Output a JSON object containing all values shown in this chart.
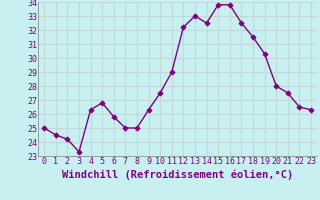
{
  "x": [
    0,
    1,
    2,
    3,
    4,
    5,
    6,
    7,
    8,
    9,
    10,
    11,
    12,
    13,
    14,
    15,
    16,
    17,
    18,
    19,
    20,
    21,
    22,
    23
  ],
  "y": [
    25.0,
    24.5,
    24.2,
    23.3,
    26.3,
    26.8,
    25.8,
    25.0,
    25.0,
    26.3,
    27.5,
    29.0,
    32.2,
    33.0,
    32.5,
    33.8,
    33.8,
    32.5,
    31.5,
    30.3,
    28.0,
    27.5,
    26.5,
    26.3
  ],
  "line_color": "#800080",
  "marker": "D",
  "background_color": "#c8f0f0",
  "grid_color": "#c0d8d8",
  "xlabel": "Windchill (Refroidissement éolien,°C)",
  "xlabel_color": "#800080",
  "tick_color": "#800080",
  "ylim": [
    23,
    34
  ],
  "yticks": [
    23,
    24,
    25,
    26,
    27,
    28,
    29,
    30,
    31,
    32,
    33,
    34
  ],
  "xticks": [
    0,
    1,
    2,
    3,
    4,
    5,
    6,
    7,
    8,
    9,
    10,
    11,
    12,
    13,
    14,
    15,
    16,
    17,
    18,
    19,
    20,
    21,
    22,
    23
  ],
  "tick_fontsize": 6.0,
  "xlabel_fontsize": 7.5,
  "line_width": 1.0,
  "marker_size": 2.5
}
